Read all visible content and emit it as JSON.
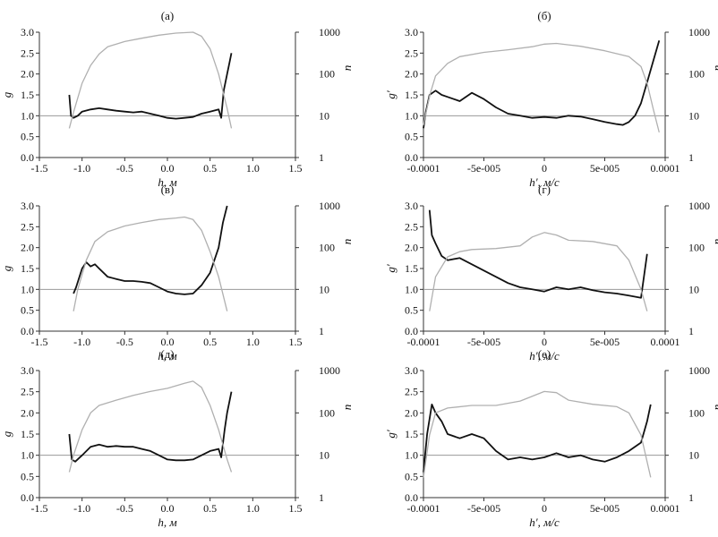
{
  "chart_data": [
    {
      "type": "line",
      "title": "(а)",
      "xlabel": "h, м",
      "ylabel": "g",
      "ylabel_right": "n",
      "xlim": [
        -1.5,
        1.5
      ],
      "ylim": [
        0.0,
        3.0
      ],
      "xticks": [
        "-1.5",
        "-1.0",
        "-0.5",
        "0.0",
        "0.5",
        "1.0",
        "1.5"
      ],
      "yticks": [
        "0.0",
        "0.5",
        "1.0",
        "1.5",
        "2.0",
        "2.5",
        "3.0"
      ],
      "right_axis": {
        "scale": "log",
        "ticks": [
          "1",
          "10",
          "100",
          "1000"
        ]
      },
      "reference_line": 1.0,
      "series": [
        {
          "axis": "left",
          "color": "#111111",
          "x": [
            -1.15,
            -1.13,
            -1.1,
            -1.05,
            -1.0,
            -0.9,
            -0.8,
            -0.7,
            -0.6,
            -0.5,
            -0.4,
            -0.3,
            -0.2,
            -0.1,
            0.0,
            0.1,
            0.2,
            0.3,
            0.4,
            0.5,
            0.6,
            0.63,
            0.66,
            0.7,
            0.73,
            0.75
          ],
          "y": [
            1.5,
            1.0,
            0.95,
            1.0,
            1.1,
            1.15,
            1.18,
            1.15,
            1.12,
            1.1,
            1.08,
            1.1,
            1.05,
            1.0,
            0.95,
            0.93,
            0.95,
            0.97,
            1.05,
            1.1,
            1.15,
            0.95,
            1.6,
            2.0,
            2.3,
            2.5
          ]
        },
        {
          "axis": "right",
          "color": "#b0b0b0",
          "x": [
            -1.15,
            -1.1,
            -1.0,
            -0.9,
            -0.8,
            -0.7,
            -0.5,
            -0.3,
            -0.1,
            0.1,
            0.3,
            0.4,
            0.5,
            0.6,
            0.7,
            0.75
          ],
          "y": [
            5,
            12,
            60,
            160,
            300,
            450,
            600,
            720,
            850,
            950,
            1000,
            800,
            400,
            100,
            15,
            5
          ]
        }
      ]
    },
    {
      "type": "line",
      "title": "(б)",
      "xlabel": "h′, м/с",
      "ylabel": "g′",
      "ylabel_right": "n",
      "xlim": [
        -0.0001,
        0.0001
      ],
      "ylim": [
        0.0,
        3.0
      ],
      "xticks": [
        "-0.0001",
        "-5e-005",
        "0",
        "5e-005",
        "0.0001"
      ],
      "yticks": [
        "0.0",
        "0.5",
        "1.0",
        "1.5",
        "2.0",
        "2.5",
        "3.0"
      ],
      "right_axis": {
        "scale": "log",
        "ticks": [
          "1",
          "10",
          "100",
          "1000"
        ]
      },
      "reference_line": 1.0,
      "series": [
        {
          "axis": "left",
          "color": "#111111",
          "x": [
            -0.0001,
            -9.8e-05,
            -9.5e-05,
            -9e-05,
            -8.5e-05,
            -8e-05,
            -7e-05,
            -6e-05,
            -5e-05,
            -4e-05,
            -3e-05,
            -2e-05,
            -1e-05,
            0,
            1e-05,
            2e-05,
            3e-05,
            4e-05,
            5e-05,
            6e-05,
            6.5e-05,
            7e-05,
            7.5e-05,
            8e-05,
            8.5e-05,
            9e-05,
            9.5e-05
          ],
          "y": [
            0.7,
            1.1,
            1.5,
            1.6,
            1.5,
            1.45,
            1.35,
            1.55,
            1.4,
            1.2,
            1.05,
            1.0,
            0.95,
            0.97,
            0.95,
            1.0,
            0.98,
            0.92,
            0.85,
            0.8,
            0.78,
            0.85,
            1.0,
            1.3,
            1.8,
            2.3,
            2.8
          ]
        },
        {
          "axis": "right",
          "color": "#b0b0b0",
          "x": [
            -0.0001,
            -9.5e-05,
            -9e-05,
            -8e-05,
            -7e-05,
            -5e-05,
            -3e-05,
            -1e-05,
            0,
            1e-05,
            3e-05,
            5e-05,
            7e-05,
            8e-05,
            8.5e-05,
            9e-05,
            9.5e-05
          ],
          "y": [
            6,
            30,
            90,
            180,
            260,
            330,
            380,
            450,
            520,
            540,
            460,
            360,
            260,
            150,
            60,
            15,
            4
          ]
        }
      ]
    },
    {
      "type": "line",
      "title": "(в)",
      "xlabel": "h, м",
      "ylabel": "g",
      "ylabel_right": "n",
      "xlim": [
        -1.5,
        1.5
      ],
      "ylim": [
        0.0,
        3.0
      ],
      "xticks": [
        "-1.5",
        "-1.0",
        "-0.5",
        "0.0",
        "0.5",
        "1.0",
        "1.5"
      ],
      "yticks": [
        "0.0",
        "0.5",
        "1.0",
        "1.5",
        "2.0",
        "2.5",
        "3.0"
      ],
      "right_axis": {
        "scale": "log",
        "ticks": [
          "1",
          "10",
          "100",
          "1000"
        ]
      },
      "reference_line": 1.0,
      "series": [
        {
          "axis": "left",
          "color": "#111111",
          "x": [
            -1.1,
            -1.07,
            -1.0,
            -0.95,
            -0.9,
            -0.85,
            -0.8,
            -0.7,
            -0.6,
            -0.5,
            -0.4,
            -0.3,
            -0.2,
            -0.1,
            0.0,
            0.1,
            0.2,
            0.3,
            0.4,
            0.5,
            0.6,
            0.65,
            0.7
          ],
          "y": [
            0.9,
            1.05,
            1.5,
            1.65,
            1.55,
            1.6,
            1.5,
            1.3,
            1.25,
            1.2,
            1.2,
            1.18,
            1.15,
            1.05,
            0.95,
            0.9,
            0.88,
            0.9,
            1.1,
            1.4,
            2.0,
            2.6,
            3.0
          ]
        },
        {
          "axis": "right",
          "color": "#b0b0b0",
          "x": [
            -1.1,
            -1.05,
            -0.95,
            -0.85,
            -0.7,
            -0.5,
            -0.3,
            -0.1,
            0.1,
            0.2,
            0.3,
            0.4,
            0.5,
            0.6,
            0.7
          ],
          "y": [
            3,
            10,
            50,
            140,
            240,
            330,
            400,
            470,
            510,
            540,
            470,
            260,
            80,
            20,
            3
          ]
        }
      ]
    },
    {
      "type": "line",
      "title": "(г)",
      "xlabel": "h′, м/с",
      "ylabel": "g′",
      "ylabel_right": "n",
      "xlim": [
        -0.0001,
        0.0001
      ],
      "ylim": [
        0.0,
        3.0
      ],
      "xticks": [
        "-0.0001",
        "-5e-005",
        "0",
        "5e-005",
        "0.0001"
      ],
      "yticks": [
        "0.0",
        "0.5",
        "1.0",
        "1.5",
        "2.0",
        "2.5",
        "3.0"
      ],
      "right_axis": {
        "scale": "log",
        "ticks": [
          "1",
          "10",
          "100",
          "1000"
        ]
      },
      "reference_line": 1.0,
      "series": [
        {
          "axis": "left",
          "color": "#111111",
          "x": [
            -9.5e-05,
            -9.3e-05,
            -9e-05,
            -8.5e-05,
            -8e-05,
            -7e-05,
            -6e-05,
            -5e-05,
            -4e-05,
            -3e-05,
            -2e-05,
            -1e-05,
            0,
            1e-05,
            2e-05,
            3e-05,
            4e-05,
            5e-05,
            6e-05,
            7e-05,
            8e-05,
            8.5e-05
          ],
          "y": [
            2.9,
            2.3,
            2.1,
            1.8,
            1.7,
            1.75,
            1.6,
            1.45,
            1.3,
            1.15,
            1.05,
            1.0,
            0.95,
            1.05,
            1.0,
            1.05,
            0.98,
            0.93,
            0.9,
            0.85,
            0.8,
            1.85
          ]
        },
        {
          "axis": "right",
          "color": "#b0b0b0",
          "x": [
            -9.5e-05,
            -9e-05,
            -8e-05,
            -7e-05,
            -6e-05,
            -4e-05,
            -2e-05,
            -1e-05,
            0,
            1e-05,
            2e-05,
            4e-05,
            6e-05,
            7e-05,
            8e-05,
            8.5e-05
          ],
          "y": [
            3,
            20,
            60,
            80,
            90,
            95,
            110,
            180,
            230,
            200,
            150,
            140,
            110,
            50,
            10,
            3
          ]
        }
      ]
    },
    {
      "type": "line",
      "title": "(д)",
      "xlabel": "h, м",
      "ylabel": "g",
      "ylabel_right": "n",
      "xlim": [
        -1.5,
        1.5
      ],
      "ylim": [
        0.0,
        3.0
      ],
      "xticks": [
        "-1.5",
        "-1.0",
        "-0.5",
        "0.0",
        "0.5",
        "1.0",
        "1.5"
      ],
      "yticks": [
        "0.0",
        "0.5",
        "1.0",
        "1.5",
        "2.0",
        "2.5",
        "3.0"
      ],
      "right_axis": {
        "scale": "log",
        "ticks": [
          "1",
          "10",
          "100",
          "1000"
        ]
      },
      "reference_line": 1.0,
      "series": [
        {
          "axis": "left",
          "color": "#111111",
          "x": [
            -1.15,
            -1.12,
            -1.08,
            -1.0,
            -0.9,
            -0.8,
            -0.7,
            -0.6,
            -0.5,
            -0.4,
            -0.3,
            -0.2,
            -0.1,
            0.0,
            0.1,
            0.2,
            0.3,
            0.4,
            0.5,
            0.6,
            0.63,
            0.67,
            0.7,
            0.73,
            0.75
          ],
          "y": [
            1.5,
            0.9,
            0.85,
            1.0,
            1.2,
            1.25,
            1.2,
            1.22,
            1.2,
            1.2,
            1.15,
            1.1,
            1.0,
            0.9,
            0.88,
            0.88,
            0.9,
            1.0,
            1.1,
            1.15,
            0.95,
            1.6,
            2.0,
            2.3,
            2.5
          ]
        },
        {
          "axis": "right",
          "color": "#b0b0b0",
          "x": [
            -1.15,
            -1.1,
            -1.0,
            -0.9,
            -0.8,
            -0.6,
            -0.4,
            -0.2,
            0.0,
            0.2,
            0.3,
            0.4,
            0.5,
            0.6,
            0.7,
            0.75
          ],
          "y": [
            4,
            10,
            40,
            100,
            150,
            200,
            260,
            320,
            380,
            500,
            560,
            400,
            150,
            40,
            8,
            4
          ]
        }
      ]
    },
    {
      "type": "line",
      "title": "(е)",
      "xlabel": "h′, м/с",
      "ylabel": "g′",
      "ylabel_right": "n",
      "xlim": [
        -0.0001,
        0.0001
      ],
      "ylim": [
        0.0,
        3.0
      ],
      "xticks": [
        "-0.0001",
        "-5e-005",
        "0",
        "5e-005",
        "0.0001"
      ],
      "yticks": [
        "0.0",
        "0.5",
        "1.0",
        "1.5",
        "2.0",
        "2.5",
        "3.0"
      ],
      "right_axis": {
        "scale": "log",
        "ticks": [
          "1",
          "10",
          "100",
          "1000"
        ]
      },
      "reference_line": 1.0,
      "series": [
        {
          "axis": "left",
          "color": "#111111",
          "x": [
            -0.0001,
            -9.7e-05,
            -9.3e-05,
            -9e-05,
            -8.5e-05,
            -8e-05,
            -7e-05,
            -6e-05,
            -5e-05,
            -4e-05,
            -3e-05,
            -2e-05,
            -1e-05,
            0,
            1e-05,
            2e-05,
            3e-05,
            4e-05,
            5e-05,
            6e-05,
            7e-05,
            8e-05,
            8.5e-05,
            8.8e-05
          ],
          "y": [
            0.6,
            1.5,
            2.2,
            2.0,
            1.8,
            1.5,
            1.4,
            1.5,
            1.4,
            1.1,
            0.9,
            0.95,
            0.9,
            0.95,
            1.05,
            0.95,
            1.0,
            0.9,
            0.85,
            0.95,
            1.1,
            1.3,
            1.8,
            2.2
          ]
        },
        {
          "axis": "right",
          "color": "#b0b0b0",
          "x": [
            -0.0001,
            -9.5e-05,
            -9e-05,
            -8e-05,
            -6e-05,
            -4e-05,
            -2e-05,
            0,
            1e-05,
            2e-05,
            4e-05,
            6e-05,
            7e-05,
            8e-05,
            8.8e-05
          ],
          "y": [
            3,
            30,
            100,
            130,
            150,
            150,
            190,
            320,
            300,
            200,
            160,
            140,
            100,
            30,
            3
          ]
        }
      ]
    }
  ]
}
